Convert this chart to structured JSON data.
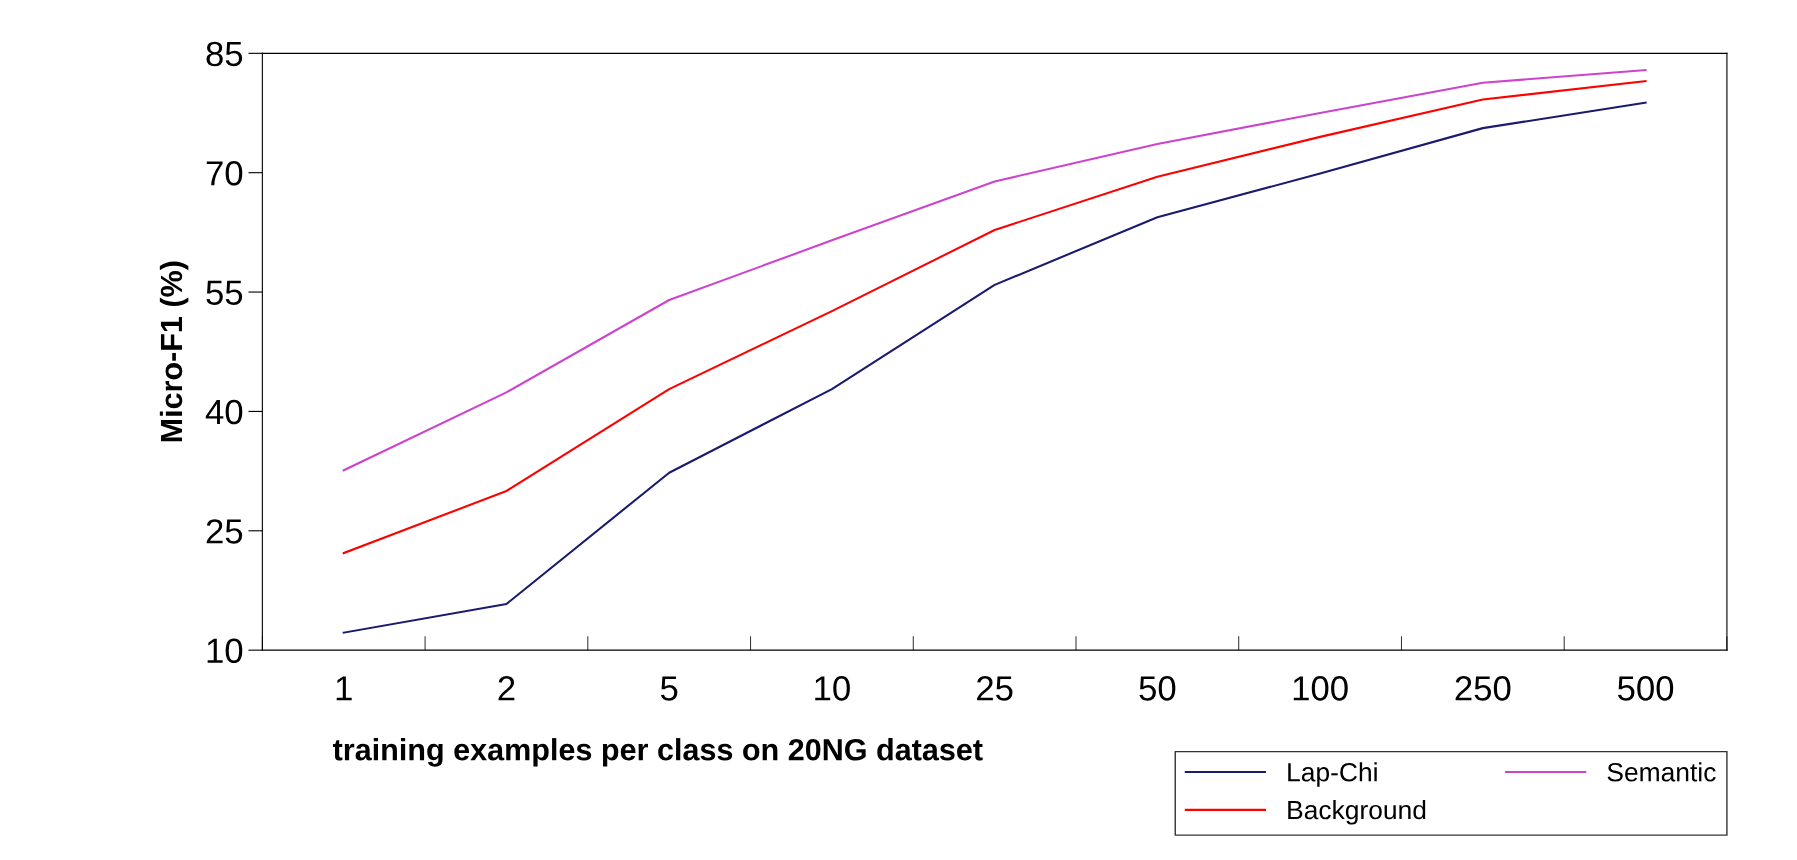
{
  "chart_data": {
    "type": "line",
    "xlabel": "training examples per class on 20NG dataset",
    "ylabel": "Micro-F1 (%)",
    "categories": [
      "1",
      "2",
      "5",
      "10",
      "25",
      "50",
      "100",
      "250",
      "500"
    ],
    "series": [
      {
        "name": "Lap-Chi",
        "color": "#1a1a6e",
        "values": [
          12.2,
          15.8,
          32.3,
          42.8,
          55.9,
          64.4,
          69.9,
          75.6,
          78.8
        ]
      },
      {
        "name": "Background",
        "color": "#ff0000",
        "values": [
          22.2,
          30.0,
          42.8,
          52.6,
          62.8,
          69.5,
          74.5,
          79.2,
          81.5
        ]
      },
      {
        "name": "Semantic",
        "color": "#cc44cc",
        "values": [
          32.6,
          42.4,
          54.0,
          61.5,
          68.9,
          73.6,
          77.5,
          81.3,
          82.9
        ]
      }
    ],
    "ylim": [
      10,
      85
    ],
    "yticks": [
      10,
      25,
      40,
      55,
      70,
      85
    ],
    "grid": false,
    "legend": "bottom right",
    "marker": "none",
    "line_style": "solid"
  }
}
